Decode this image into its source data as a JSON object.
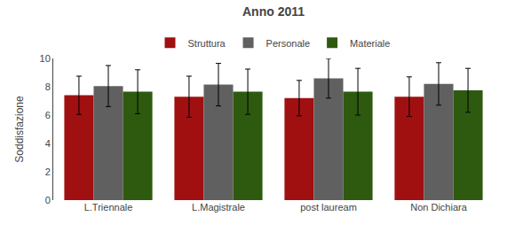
{
  "chart_data": {
    "type": "bar",
    "title": "Anno 2011",
    "ylabel": "Soddisfazione",
    "categories": [
      "L.Triennale",
      "L.Magistrale",
      "post lauream",
      "Non Dichiara"
    ],
    "series": [
      {
        "name": "Struttura",
        "color": "#a01010",
        "values": [
          7.4,
          7.3,
          7.2,
          7.3
        ],
        "errors": [
          1.35,
          1.45,
          1.25,
          1.4
        ]
      },
      {
        "name": "Personale",
        "color": "#606060",
        "values": [
          8.05,
          8.15,
          8.6,
          8.2
        ],
        "errors": [
          1.45,
          1.5,
          1.4,
          1.5
        ]
      },
      {
        "name": "Materiale",
        "color": "#2e5a10",
        "values": [
          7.65,
          7.65,
          7.65,
          7.75
        ],
        "errors": [
          1.55,
          1.6,
          1.65,
          1.55
        ]
      }
    ],
    "ylim": [
      0,
      10
    ],
    "yticks": [
      0,
      2,
      4,
      6,
      8,
      10
    ],
    "grid": false,
    "legend": "top"
  }
}
